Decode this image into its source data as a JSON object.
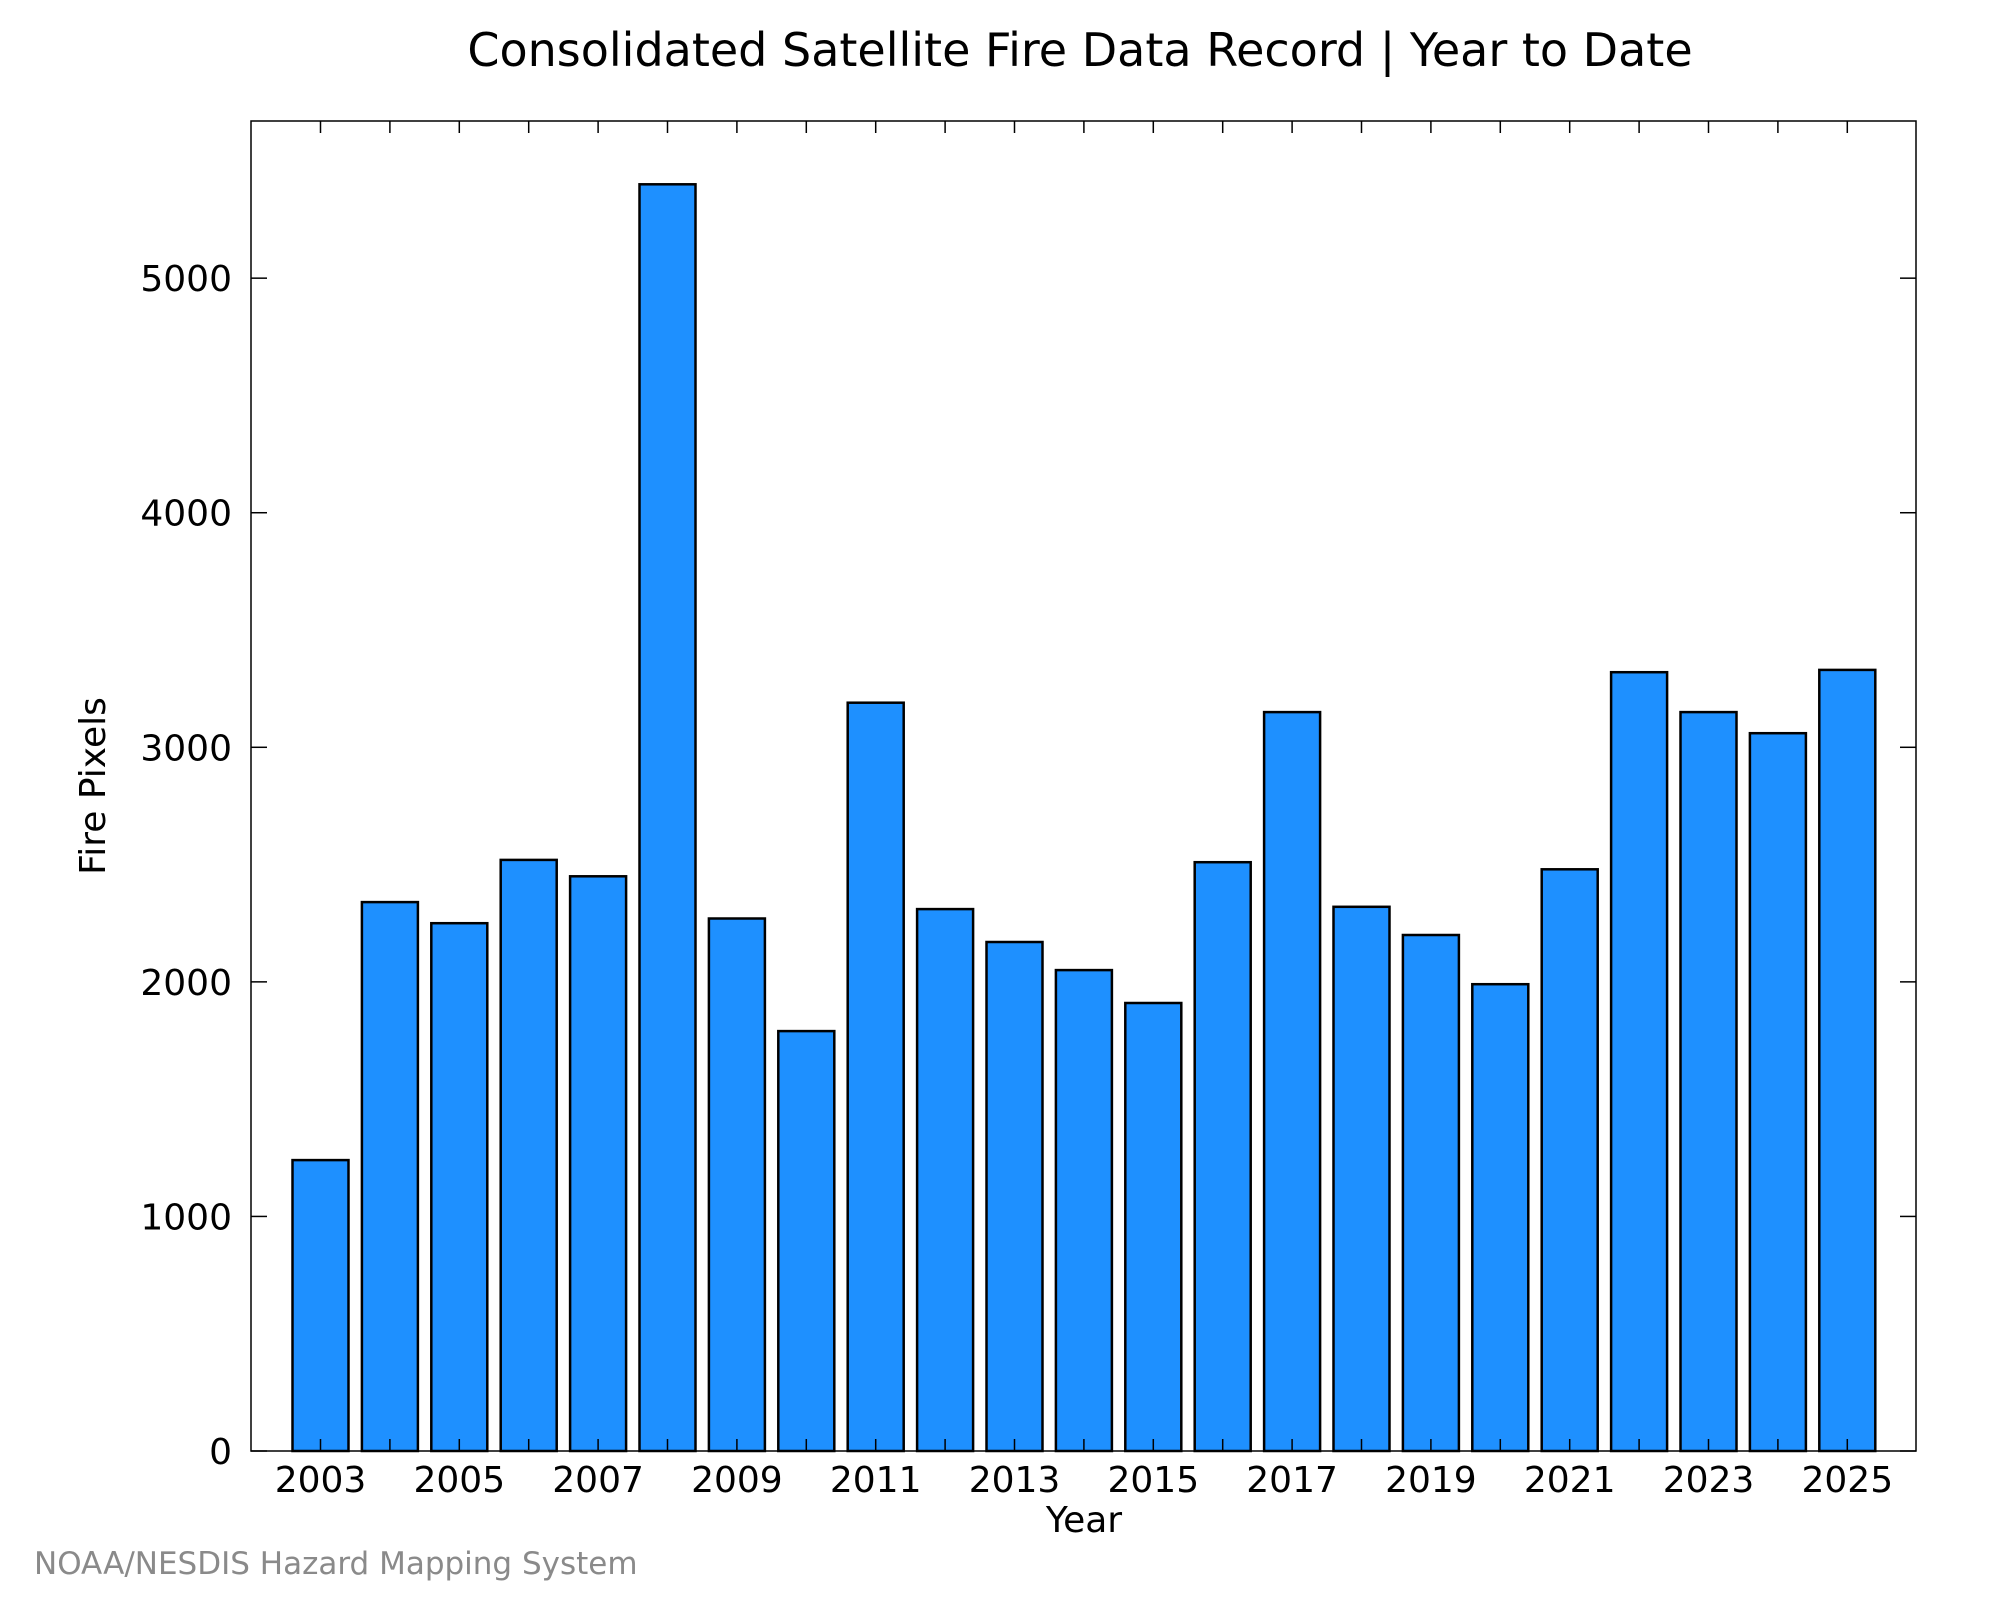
{
  "chart_data": {
    "type": "bar",
    "title": "Consolidated Satellite Fire Data Record | Year to Date",
    "xlabel": "Year",
    "ylabel": "Fire Pixels",
    "categories": [
      "2003",
      "2004",
      "2005",
      "2006",
      "2007",
      "2008",
      "2009",
      "2010",
      "2011",
      "2012",
      "2013",
      "2014",
      "2015",
      "2016",
      "2017",
      "2018",
      "2019",
      "2020",
      "2021",
      "2022",
      "2023",
      "2024",
      "2025"
    ],
    "values": [
      1240,
      2340,
      2250,
      2520,
      2450,
      5400,
      2270,
      1790,
      3190,
      2310,
      2170,
      2050,
      1910,
      2510,
      3150,
      2320,
      2200,
      1990,
      2480,
      3320,
      3150,
      3060,
      3330
    ],
    "x_tick_labels": [
      "2003",
      "2005",
      "2007",
      "2009",
      "2011",
      "2013",
      "2015",
      "2017",
      "2019",
      "2021",
      "2023",
      "2025"
    ],
    "y_ticks": [
      0,
      1000,
      2000,
      3000,
      4000,
      5000
    ],
    "ylim": [
      0,
      5670
    ],
    "grid": false,
    "bar_color": "#1e90ff",
    "bar_edge_color": "#000000"
  },
  "credit": "NOAA/NESDIS Hazard Mapping System"
}
